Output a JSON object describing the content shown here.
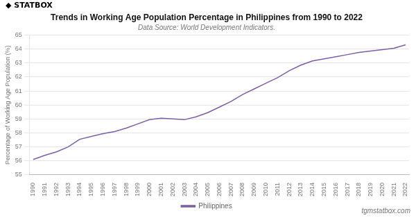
{
  "chart_data": {
    "type": "line",
    "title": "Trends in Working Age Population Percentage in Philippines from 1990 to 2022",
    "subtitle": "Data Source: World Development Indicators.",
    "y_label": "Percentage of Working Age Population (%)",
    "annotations": [
      "◆ STATBOX",
      "tgmstatbox.com"
    ],
    "x": [
      1990,
      1991,
      1992,
      1993,
      1994,
      1995,
      1996,
      1997,
      1998,
      1999,
      2000,
      2001,
      2002,
      2003,
      2004,
      2005,
      2006,
      2007,
      2008,
      2009,
      2010,
      2011,
      2012,
      2013,
      2014,
      2015,
      2016,
      2017,
      2018,
      2019,
      2020,
      2021,
      2022
    ],
    "series": [
      {
        "name": "Philippines",
        "color": "#7b5ea7",
        "values": [
          56.1,
          56.4,
          56.65,
          57.0,
          57.55,
          57.75,
          57.95,
          58.1,
          58.35,
          58.65,
          58.95,
          59.05,
          59.0,
          58.95,
          59.15,
          59.45,
          59.85,
          60.25,
          60.75,
          61.15,
          61.55,
          61.95,
          62.45,
          62.85,
          63.15,
          63.3,
          63.45,
          63.6,
          63.75,
          63.85,
          63.95,
          64.05,
          64.3
        ]
      }
    ],
    "xlim": [
      1989.7,
      2022.3
    ],
    "xticks": [
      1990,
      1991,
      1992,
      1993,
      1994,
      1995,
      1996,
      1997,
      1998,
      1999,
      2000,
      2001,
      2002,
      2003,
      2004,
      2005,
      2006,
      2007,
      2008,
      2009,
      2010,
      2011,
      2012,
      2013,
      2014,
      2015,
      2016,
      2017,
      2018,
      2019,
      2020,
      2021,
      2022
    ],
    "ylim": [
      55,
      65
    ],
    "yticks": [
      55,
      56,
      57,
      58,
      59,
      60,
      61,
      62,
      63,
      64,
      65
    ],
    "grid": "y",
    "legend": "bottom"
  }
}
